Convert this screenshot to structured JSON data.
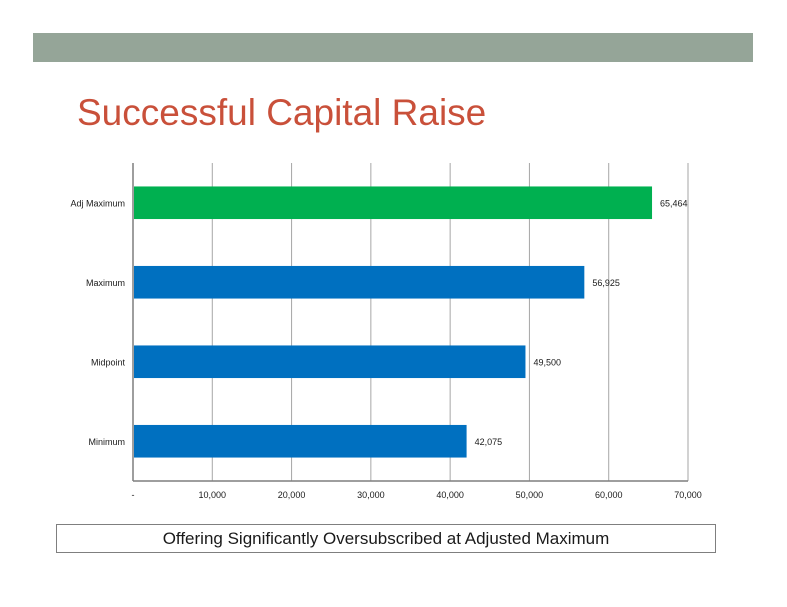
{
  "slide": {
    "title": "Successful Capital Raise",
    "caption": "Offering Significantly Oversubscribed at Adjusted Maximum",
    "colors": {
      "header_bar": "#95a598",
      "title": "#c9503a",
      "axis": "#7f7f7f",
      "grid": "#a6a6a6"
    }
  },
  "chart_data": {
    "type": "bar",
    "orientation": "horizontal",
    "categories": [
      "Adj Maximum",
      "Maximum",
      "Midpoint",
      "Minimum"
    ],
    "values": [
      65464,
      56925,
      49500,
      42075
    ],
    "value_labels": [
      "65,464",
      "56,925",
      "49,500",
      "42,075"
    ],
    "bar_colors": [
      "#00b050",
      "#0070c0",
      "#0070c0",
      "#0070c0"
    ],
    "xlim": [
      0,
      70000
    ],
    "xticks": [
      0,
      10000,
      20000,
      30000,
      40000,
      50000,
      60000,
      70000
    ],
    "xtick_labels": [
      "-",
      "10,000",
      "20,000",
      "30,000",
      "40,000",
      "50,000",
      "60,000",
      "70,000"
    ],
    "grid": "vertical",
    "legend": "none"
  }
}
